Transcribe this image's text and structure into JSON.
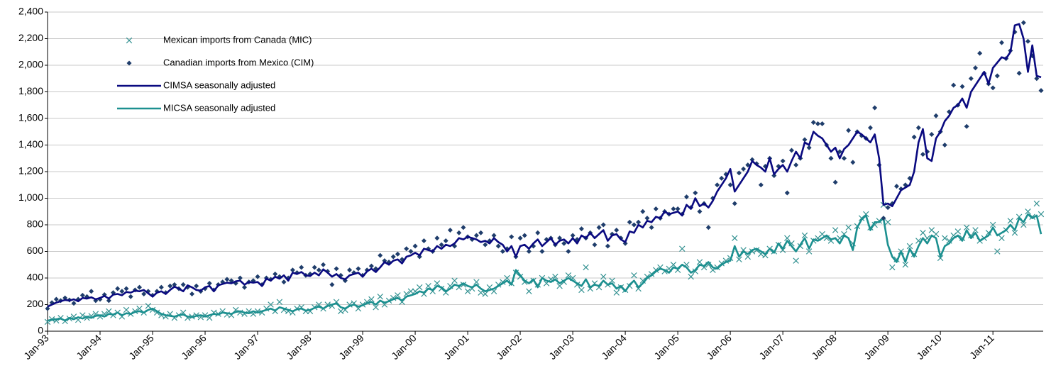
{
  "chart_data": {
    "type": "line",
    "categories": [
      "Jan-93",
      null,
      null,
      null,
      null,
      null,
      null,
      null,
      null,
      null,
      null,
      null,
      "Jan-94",
      null,
      null,
      null,
      null,
      null,
      null,
      null,
      null,
      null,
      null,
      null,
      "Jan-95",
      null,
      null,
      null,
      null,
      null,
      null,
      null,
      null,
      null,
      null,
      null,
      "Jan-96",
      null,
      null,
      null,
      null,
      null,
      null,
      null,
      null,
      null,
      null,
      null,
      "Jan-97",
      null,
      null,
      null,
      null,
      null,
      null,
      null,
      null,
      null,
      null,
      null,
      "Jan-98",
      null,
      null,
      null,
      null,
      null,
      null,
      null,
      null,
      null,
      null,
      null,
      "Jan-99",
      null,
      null,
      null,
      null,
      null,
      null,
      null,
      null,
      null,
      null,
      null,
      "Jan-00",
      null,
      null,
      null,
      null,
      null,
      null,
      null,
      null,
      null,
      null,
      null,
      "Jan-01",
      null,
      null,
      null,
      null,
      null,
      null,
      null,
      null,
      null,
      null,
      null,
      "Jan-02",
      null,
      null,
      null,
      null,
      null,
      null,
      null,
      null,
      null,
      null,
      null,
      "Jan-03",
      null,
      null,
      null,
      null,
      null,
      null,
      null,
      null,
      null,
      null,
      null,
      "Jan-04",
      null,
      null,
      null,
      null,
      null,
      null,
      null,
      null,
      null,
      null,
      null,
      "Jan-05",
      null,
      null,
      null,
      null,
      null,
      null,
      null,
      null,
      null,
      null,
      null,
      "Jan-06",
      null,
      null,
      null,
      null,
      null,
      null,
      null,
      null,
      null,
      null,
      null,
      "Jan-07",
      null,
      null,
      null,
      null,
      null,
      null,
      null,
      null,
      null,
      null,
      null,
      "Jan-08",
      null,
      null,
      null,
      null,
      null,
      null,
      null,
      null,
      null,
      null,
      null,
      "Jan-09",
      null,
      null,
      null,
      null,
      null,
      null,
      null,
      null,
      null,
      null,
      null,
      "Jan-10",
      null,
      null,
      null,
      null,
      null,
      null,
      null,
      null,
      null,
      null,
      null,
      "Jan-11",
      null,
      null,
      null,
      null,
      null,
      null,
      null,
      null,
      null,
      null,
      null
    ],
    "ylim": [
      0,
      2400
    ],
    "yticks": [
      0,
      200,
      400,
      600,
      800,
      {
        "value": 1000,
        "label": "1,000"
      },
      {
        "value": 1200,
        "label": "1,200"
      },
      {
        "value": 1400,
        "label": "1,400"
      },
      {
        "value": 1600,
        "label": "1,600"
      },
      {
        "value": 1800,
        "label": "1,800"
      },
      {
        "value": 2000,
        "label": "2,000"
      },
      {
        "value": 2200,
        "label": "2,200"
      },
      {
        "value": 2400,
        "label": "2,400"
      }
    ],
    "grid": true,
    "legend": "upper left",
    "series": [
      {
        "name": "Mexican imports from Canada (MIC)",
        "color": "#2f8f8f",
        "mark": "x",
        "values": [
          70,
          90,
          80,
          100,
          75,
          95,
          110,
          85,
          120,
          100,
          115,
          130,
          110,
          130,
          150,
          120,
          140,
          110,
          160,
          130,
          150,
          170,
          140,
          190,
          160,
          140,
          120,
          110,
          130,
          100,
          120,
          140,
          100,
          110,
          120,
          105,
          120,
          100,
          140,
          130,
          150,
          125,
          120,
          160,
          140,
          130,
          150,
          130,
          150,
          140,
          170,
          200,
          150,
          220,
          160,
          150,
          140,
          170,
          180,
          150,
          150,
          180,
          200,
          170,
          200,
          190,
          220,
          150,
          160,
          200,
          210,
          170,
          200,
          220,
          240,
          180,
          260,
          200,
          230,
          250,
          270,
          220,
          280,
          300,
          300,
          330,
          280,
          340,
          300,
          360,
          320,
          290,
          340,
          380,
          330,
          350,
          300,
          320,
          370,
          290,
          280,
          330,
          300,
          350,
          370,
          400,
          360,
          440,
          410,
          370,
          300,
          380,
          350,
          400,
          360,
          390,
          410,
          340,
          370,
          420,
          400,
          350,
          310,
          480,
          320,
          360,
          330,
          410,
          350,
          380,
          290,
          330,
          310,
          340,
          420,
          320,
          380,
          410,
          430,
          460,
          480,
          450,
          470,
          500,
          460,
          620,
          500,
          410,
          450,
          520,
          480,
          500,
          460,
          480,
          510,
          530,
          550,
          700,
          540,
          610,
          560,
          600,
          610,
          580,
          570,
          620,
          600,
          650,
          610,
          700,
          660,
          530,
          640,
          720,
          600,
          680,
          700,
          730,
          700,
          680,
          760,
          700,
          730,
          780,
          660,
          790,
          850,
          880,
          780,
          800,
          830,
          950,
          820,
          480,
          540,
          600,
          500,
          640,
          580,
          680,
          740,
          700,
          760,
          730,
          550,
          700,
          680,
          720,
          750,
          700,
          780,
          720,
          760,
          680,
          700,
          740,
          800,
          600,
          700,
          760,
          830,
          740,
          860,
          800,
          900,
          860,
          960,
          880
        ]
      },
      {
        "name": "Canadian imports from Mexico (CIM)",
        "color": "#1f3d6b",
        "mark": "diamond",
        "values": [
          170,
          215,
          240,
          230,
          250,
          235,
          210,
          240,
          270,
          260,
          300,
          230,
          240,
          275,
          230,
          290,
          320,
          300,
          320,
          260,
          310,
          330,
          280,
          300,
          270,
          300,
          330,
          290,
          340,
          350,
          320,
          350,
          330,
          280,
          340,
          300,
          320,
          360,
          310,
          350,
          370,
          390,
          380,
          360,
          400,
          330,
          370,
          380,
          410,
          350,
          400,
          390,
          430,
          410,
          370,
          400,
          460,
          440,
          480,
          420,
          430,
          480,
          460,
          500,
          450,
          350,
          470,
          420,
          380,
          460,
          440,
          470,
          420,
          460,
          490,
          470,
          570,
          530,
          520,
          560,
          580,
          540,
          620,
          600,
          640,
          560,
          680,
          620,
          600,
          700,
          650,
          680,
          760,
          640,
          740,
          780,
          710,
          690,
          720,
          740,
          650,
          680,
          720,
          640,
          600,
          620,
          710,
          560,
          700,
          720,
          600,
          640,
          740,
          600,
          690,
          700,
          650,
          700,
          660,
          600,
          720,
          690,
          770,
          700,
          740,
          650,
          780,
          800,
          640,
          730,
          760,
          700,
          660,
          820,
          800,
          820,
          900,
          850,
          780,
          920,
          850,
          900,
          880,
          920,
          920,
          880,
          1010,
          930,
          1040,
          900,
          960,
          780,
          1000,
          1100,
          1150,
          1180,
          1100,
          960,
          1190,
          1220,
          1250,
          1290,
          1260,
          1100,
          1240,
          1300,
          1170,
          1240,
          1280,
          1040,
          1360,
          1250,
          1300,
          1440,
          1380,
          1570,
          1560,
          1560,
          1400,
          1300,
          1120,
          1350,
          1300,
          1510,
          1270,
          1500,
          1470,
          1450,
          1530,
          1680,
          1250,
          850,
          930,
          960,
          1090,
          1070,
          1100,
          1150,
          1460,
          1530,
          1330,
          1350,
          1480,
          1620,
          1500,
          1400,
          1650,
          1850,
          1700,
          1840,
          1540,
          1900,
          1980,
          2090,
          1940,
          1860,
          1830,
          1920,
          2170,
          2050,
          2110,
          2250,
          1940,
          2320,
          2180,
          2070,
          1900,
          1810
        ]
      },
      {
        "name": "CIMSA seasonally adjusted",
        "color": "#0a0a80",
        "mark": "line",
        "values": [
          185,
          200,
          215,
          225,
          235,
          230,
          240,
          225,
          250,
          245,
          255,
          240,
          250,
          265,
          245,
          275,
          280,
          270,
          295,
          290,
          305,
          300,
          310,
          285,
          260,
          290,
          300,
          280,
          310,
          335,
          320,
          300,
          345,
          330,
          310,
          305,
          330,
          340,
          300,
          345,
          355,
          365,
          360,
          375,
          380,
          350,
          370,
          365,
          370,
          340,
          395,
          380,
          410,
          395,
          420,
          380,
          440,
          430,
          445,
          420,
          415,
          440,
          420,
          465,
          440,
          410,
          430,
          400,
          390,
          420,
          430,
          440,
          410,
          450,
          470,
          445,
          480,
          520,
          500,
          530,
          540,
          510,
          560,
          570,
          590,
          570,
          620,
          610,
          600,
          640,
          620,
          650,
          640,
          660,
          700,
          690,
          710,
          700,
          690,
          670,
          680,
          660,
          700,
          670,
          650,
          600,
          640,
          560,
          640,
          650,
          620,
          660,
          690,
          640,
          670,
          700,
          650,
          680,
          690,
          660,
          700,
          660,
          720,
          700,
          740,
          700,
          730,
          760,
          680,
          720,
          730,
          690,
          670,
          750,
          740,
          800,
          780,
          830,
          820,
          860,
          850,
          900,
          880,
          890,
          900,
          870,
          950,
          920,
          1000,
          940,
          960,
          930,
          980,
          1050,
          1100,
          1150,
          1220,
          1050,
          1100,
          1150,
          1200,
          1280,
          1250,
          1230,
          1200,
          1300,
          1180,
          1220,
          1250,
          1200,
          1280,
          1350,
          1300,
          1420,
          1400,
          1500,
          1470,
          1450,
          1400,
          1350,
          1380,
          1300,
          1370,
          1400,
          1450,
          1500,
          1480,
          1450,
          1420,
          1480,
          1300,
          950,
          960,
          940,
          1000,
          1060,
          1080,
          1100,
          1200,
          1420,
          1520,
          1300,
          1280,
          1450,
          1500,
          1580,
          1620,
          1680,
          1700,
          1750,
          1680,
          1800,
          1850,
          1900,
          1950,
          1860,
          1980,
          2020,
          2060,
          2050,
          2100,
          2300,
          2310,
          2200,
          1950,
          2150,
          1920,
          1910
        ]
      },
      {
        "name": "MICSA seasonally adjusted",
        "color": "#1c9090",
        "mark": "line",
        "values": [
          80,
          85,
          90,
          95,
          80,
          100,
          90,
          105,
          95,
          110,
          100,
          115,
          120,
          110,
          130,
          125,
          140,
          120,
          135,
          130,
          145,
          150,
          140,
          160,
          170,
          150,
          130,
          120,
          115,
          110,
          120,
          125,
          110,
          105,
          115,
          120,
          110,
          120,
          130,
          125,
          140,
          135,
          130,
          145,
          150,
          140,
          135,
          150,
          140,
          150,
          160,
          170,
          155,
          180,
          170,
          160,
          150,
          165,
          170,
          155,
          160,
          175,
          185,
          170,
          190,
          200,
          210,
          180,
          170,
          190,
          200,
          185,
          195,
          210,
          220,
          200,
          230,
          215,
          225,
          240,
          250,
          230,
          260,
          270,
          280,
          300,
          290,
          320,
          310,
          340,
          330,
          300,
          320,
          350,
          340,
          360,
          340,
          330,
          350,
          320,
          300,
          310,
          320,
          340,
          360,
          380,
          350,
          460,
          420,
          380,
          360,
          390,
          330,
          400,
          380,
          370,
          390,
          360,
          380,
          400,
          380,
          360,
          340,
          390,
          330,
          350,
          340,
          380,
          350,
          360,
          320,
          340,
          300,
          350,
          380,
          330,
          360,
          400,
          420,
          450,
          470,
          460,
          440,
          480,
          470,
          500,
          480,
          440,
          460,
          500,
          490,
          520,
          480,
          470,
          500,
          520,
          530,
          640,
          560,
          600,
          580,
          610,
          620,
          600,
          580,
          620,
          590,
          660,
          620,
          680,
          640,
          600,
          650,
          700,
          620,
          690,
          680,
          700,
          720,
          690,
          700,
          660,
          720,
          700,
          610,
          780,
          840,
          870,
          760,
          820,
          820,
          850,
          650,
          560,
          520,
          600,
          520,
          620,
          560,
          640,
          700,
          660,
          720,
          700,
          560,
          640,
          660,
          700,
          720,
          680,
          760,
          700,
          740,
          680,
          700,
          720,
          780,
          720,
          740,
          760,
          800,
          760,
          850,
          820,
          880,
          850,
          870,
          730
        ]
      }
    ]
  }
}
